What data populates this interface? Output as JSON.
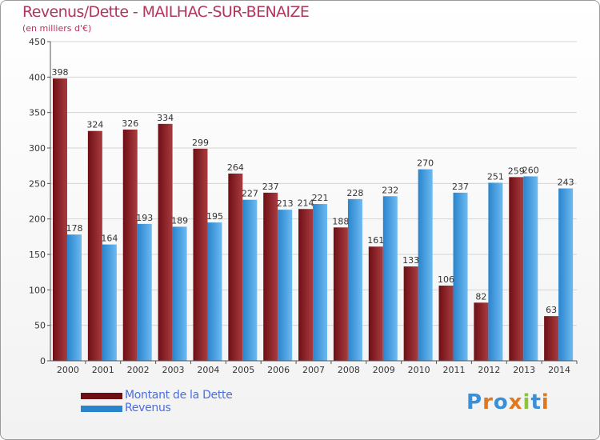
{
  "title": "Revenus/Dette - MAILHAC-SUR-BENAIZE",
  "subtitle": "(en milliers d'€)",
  "logo": "Proxiti",
  "colors": {
    "dette": "#6e0f15",
    "dette_light": "#a83c40",
    "revenus": "#2a84cc",
    "revenus_light": "#6cbaf2",
    "title": "#b0365a",
    "legend_text": "#4a6ee0",
    "logo_letters": [
      "#3a8fd6",
      "#e07820",
      "#3a8fd6",
      "#e07820",
      "#8cc43a",
      "#3a8fd6",
      "#e07820"
    ]
  },
  "chart_data": {
    "type": "bar",
    "title": "Revenus/Dette - MAILHAC-SUR-BENAIZE",
    "ylabel": "(en milliers d'€)",
    "xlabel": "",
    "categories": [
      "2000",
      "2001",
      "2002",
      "2003",
      "2004",
      "2005",
      "2006",
      "2007",
      "2008",
      "2009",
      "2010",
      "2011",
      "2012",
      "2013",
      "2014"
    ],
    "series": [
      {
        "name": "Montant de la Dette",
        "values": [
          398,
          324,
          326,
          334,
          299,
          264,
          237,
          214,
          188,
          161,
          133,
          106,
          82,
          259,
          63
        ]
      },
      {
        "name": "Revenus",
        "values": [
          178,
          164,
          193,
          189,
          195,
          227,
          213,
          221,
          228,
          232,
          270,
          237,
          251,
          260,
          243
        ]
      }
    ],
    "ylim": [
      0,
      450
    ],
    "yticks": [
      0,
      50,
      100,
      150,
      200,
      250,
      300,
      350,
      400,
      450
    ],
    "grid": true,
    "legend_position": "bottom-left"
  }
}
